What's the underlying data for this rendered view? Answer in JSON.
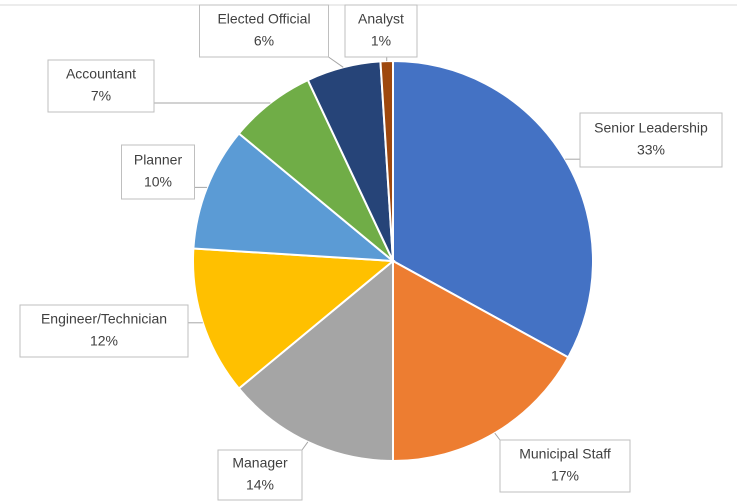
{
  "chart_data": {
    "type": "pie",
    "categories": [
      "Senior Leadership",
      "Municipal Staff",
      "Manager",
      "Engineer/Technician",
      "Planner",
      "Accountant",
      "Elected Official",
      "Analyst"
    ],
    "values": [
      33,
      17,
      14,
      12,
      10,
      7,
      6,
      1
    ],
    "value_labels": [
      "33%",
      "17%",
      "14%",
      "12%",
      "10%",
      "7%",
      "6%",
      "1%"
    ],
    "colors": [
      "#4472c4",
      "#ed7d31",
      "#a5a5a5",
      "#ffc000",
      "#5b9bd5",
      "#70ad47",
      "#264478",
      "#9e480e"
    ]
  }
}
